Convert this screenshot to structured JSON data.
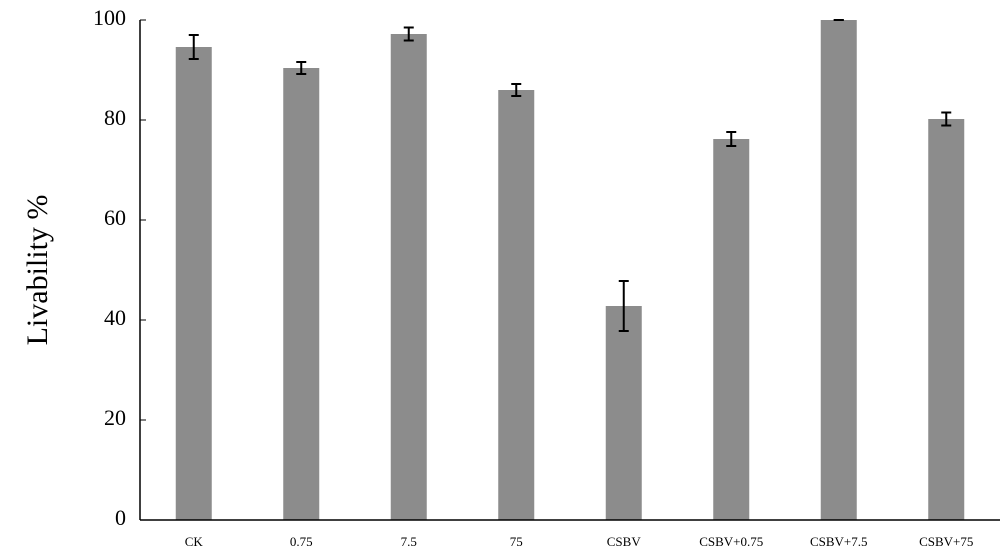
{
  "chart_data": {
    "type": "bar",
    "ylabel": "Livability %",
    "categories": [
      "CK",
      "0.75",
      "7.5",
      "75",
      "CSBV",
      "CSBV+0.75",
      "CSBV+7.5",
      "CSBV+75"
    ],
    "values": [
      94.6,
      90.4,
      97.2,
      86,
      42.8,
      76.2,
      100,
      80.2
    ],
    "errors": [
      2.4,
      1.2,
      1.3,
      1.2,
      5,
      1.4,
      0,
      1.3
    ],
    "color": "#8c8c8c",
    "ylim": [
      0,
      100
    ],
    "yticks": [
      0,
      20,
      40,
      60,
      80,
      100
    ],
    "grid": false
  }
}
